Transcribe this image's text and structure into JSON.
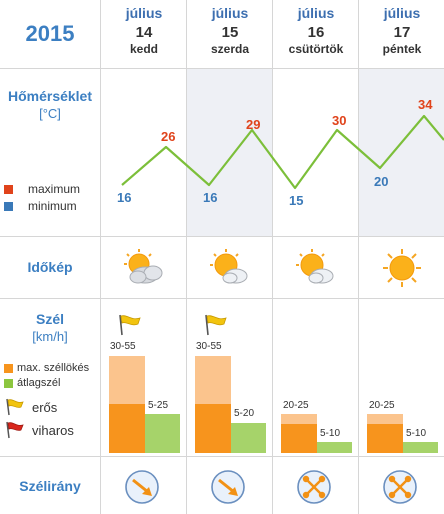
{
  "header": {
    "year": "2015",
    "days": [
      {
        "month": "július",
        "day": "14",
        "weekday": "kedd"
      },
      {
        "month": "július",
        "day": "15",
        "weekday": "szerda"
      },
      {
        "month": "július",
        "day": "16",
        "weekday": "csütörtök"
      },
      {
        "month": "július",
        "day": "17",
        "weekday": "péntek"
      }
    ]
  },
  "temperature": {
    "label": "Hőmérséklet",
    "unit": "[°C]",
    "legend_max": "maximum",
    "legend_min": "minimum",
    "max_values": [
      "26",
      "29",
      "30",
      "34"
    ],
    "min_values": [
      "16",
      "16",
      "15",
      "20"
    ],
    "colors": {
      "max": "#e0431b",
      "min": "#3a79b8",
      "line": "#7cbf3a"
    }
  },
  "sky": {
    "label": "Időkép",
    "icons": [
      "sun-cloud-icon",
      "sun-cloud-icon",
      "sun-cloud-icon",
      "sun-icon"
    ]
  },
  "wind": {
    "label": "Szél",
    "unit": "[km/h]",
    "legend_gust": "max. széllökés",
    "legend_avg": "átlagszél",
    "legend_strong": "erős",
    "legend_stormy": "viharos",
    "gust_labels": [
      "30-55",
      "30-55",
      "20-25",
      "20-25"
    ],
    "avg_labels": [
      "5-25",
      "5-20",
      "5-10",
      "5-10"
    ],
    "warnings": [
      "erős",
      "erős",
      "",
      ""
    ],
    "colors": {
      "gust": "#f7941d",
      "avg": "#8cc63f",
      "strong_flag": "#f2c40f",
      "stormy_flag": "#d9261c"
    }
  },
  "direction": {
    "label": "Szélirány",
    "icons": [
      "arrow-southeast-icon",
      "arrow-southeast-icon",
      "variable-wind-icon",
      "variable-wind-icon"
    ]
  }
}
